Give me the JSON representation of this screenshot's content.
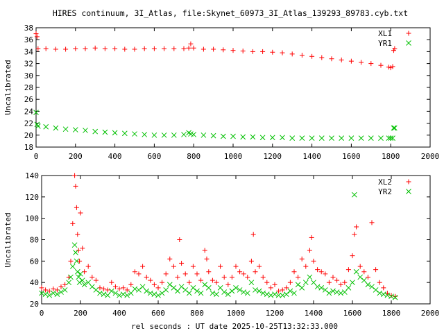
{
  "title": "HIRES continuum, 3I_Atlas, file:Skynet_60973_3I_Atlas_139293_89783.cyb.txt",
  "xlabel": "rel seconds : UT date 2025-10-25T13:32:33.000",
  "colors": {
    "red": "#ff0000",
    "green": "#00c000",
    "axes": "#000000"
  },
  "chart_data": [
    {
      "type": "scatter",
      "ylabel": "Uncalibrated",
      "xlim": [
        0,
        2000
      ],
      "ylim": [
        18,
        38
      ],
      "xticks": [
        0,
        200,
        400,
        600,
        800,
        1000,
        1200,
        1400,
        1600,
        1800,
        2000
      ],
      "yticks": [
        18,
        20,
        22,
        24,
        26,
        28,
        30,
        32,
        34,
        36,
        38
      ],
      "legend_position": "top-right",
      "series": [
        {
          "name": "XL1",
          "marker": "plus",
          "color": "#ff0000",
          "x": [
            0,
            5,
            10,
            50,
            100,
            150,
            200,
            250,
            300,
            350,
            400,
            450,
            500,
            550,
            600,
            650,
            700,
            750,
            775,
            785,
            800,
            850,
            900,
            950,
            1000,
            1050,
            1100,
            1150,
            1200,
            1250,
            1300,
            1350,
            1400,
            1450,
            1500,
            1550,
            1600,
            1650,
            1700,
            1750,
            1790,
            1800,
            1810,
            1815,
            1820
          ],
          "y": [
            37.0,
            36.5,
            34.5,
            34.5,
            34.4,
            34.4,
            34.5,
            34.5,
            34.6,
            34.5,
            34.5,
            34.4,
            34.4,
            34.5,
            34.5,
            34.5,
            34.5,
            34.5,
            34.6,
            35.3,
            34.6,
            34.4,
            34.4,
            34.3,
            34.2,
            34.1,
            34.0,
            34.0,
            33.9,
            33.8,
            33.6,
            33.4,
            33.2,
            33.0,
            32.8,
            32.6,
            32.4,
            32.2,
            32.0,
            31.7,
            31.4,
            31.3,
            31.5,
            34.2,
            34.5
          ]
        },
        {
          "name": "YR1",
          "marker": "cross",
          "color": "#00c000",
          "x": [
            0,
            5,
            10,
            50,
            100,
            150,
            200,
            250,
            300,
            350,
            400,
            450,
            500,
            550,
            600,
            650,
            700,
            750,
            775,
            785,
            800,
            850,
            900,
            950,
            1000,
            1050,
            1100,
            1150,
            1200,
            1250,
            1300,
            1350,
            1400,
            1450,
            1500,
            1550,
            1600,
            1650,
            1700,
            1750,
            1790,
            1800,
            1810,
            1815,
            1820
          ],
          "y": [
            23.8,
            21.8,
            21.5,
            21.4,
            21.2,
            21.0,
            20.9,
            20.8,
            20.6,
            20.5,
            20.4,
            20.3,
            20.2,
            20.1,
            20.0,
            20.0,
            20.0,
            20.1,
            20.4,
            20.2,
            20.1,
            20.0,
            19.9,
            19.8,
            19.8,
            19.7,
            19.7,
            19.6,
            19.6,
            19.6,
            19.5,
            19.5,
            19.5,
            19.5,
            19.5,
            19.5,
            19.5,
            19.5,
            19.5,
            19.5,
            19.5,
            19.5,
            19.5,
            21.2,
            21.2
          ]
        }
      ]
    },
    {
      "type": "scatter",
      "ylabel": "Uncalibrated",
      "xlim": [
        0,
        2000
      ],
      "ylim": [
        20,
        140
      ],
      "xticks": [
        0,
        200,
        400,
        600,
        800,
        1000,
        1200,
        1400,
        1600,
        1800,
        2000
      ],
      "yticks": [
        20,
        40,
        60,
        80,
        100,
        120,
        140
      ],
      "legend_position": "top-right",
      "series": [
        {
          "name": "XL2",
          "marker": "plus",
          "color": "#ff0000",
          "x": [
            0,
            20,
            40,
            60,
            80,
            100,
            120,
            140,
            150,
            160,
            170,
            175,
            180,
            185,
            190,
            195,
            200,
            210,
            220,
            240,
            260,
            280,
            300,
            320,
            340,
            360,
            380,
            400,
            420,
            440,
            460,
            480,
            500,
            520,
            540,
            560,
            580,
            600,
            620,
            640,
            660,
            680,
            700,
            710,
            720,
            740,
            760,
            780,
            800,
            820,
            840,
            850,
            860,
            880,
            900,
            920,
            940,
            960,
            980,
            1000,
            1020,
            1040,
            1060,
            1080,
            1090,
            1100,
            1120,
            1140,
            1160,
            1180,
            1200,
            1220,
            1240,
            1260,
            1280,
            1300,
            1320,
            1340,
            1360,
            1380,
            1390,
            1400,
            1420,
            1440,
            1460,
            1480,
            1500,
            1520,
            1540,
            1560,
            1580,
            1600,
            1610,
            1620,
            1640,
            1660,
            1680,
            1700,
            1720,
            1740,
            1760,
            1780,
            1800,
            1820
          ],
          "y": [
            35,
            33,
            32,
            34,
            33,
            36,
            38,
            45,
            60,
            95,
            140,
            130,
            110,
            85,
            70,
            60,
            105,
            72,
            50,
            55,
            45,
            42,
            35,
            34,
            33,
            40,
            36,
            34,
            35,
            33,
            38,
            50,
            48,
            55,
            45,
            42,
            38,
            35,
            40,
            48,
            62,
            55,
            45,
            80,
            58,
            48,
            40,
            55,
            48,
            42,
            70,
            62,
            50,
            42,
            40,
            55,
            45,
            38,
            45,
            55,
            50,
            48,
            45,
            60,
            85,
            50,
            55,
            45,
            40,
            35,
            38,
            32,
            33,
            35,
            40,
            50,
            45,
            62,
            55,
            70,
            82,
            60,
            52,
            50,
            48,
            40,
            45,
            42,
            38,
            40,
            52,
            65,
            85,
            92,
            55,
            50,
            45,
            96,
            52,
            40,
            35,
            30,
            28,
            27
          ]
        },
        {
          "name": "YR2",
          "marker": "cross",
          "color": "#00c000",
          "x": [
            0,
            20,
            40,
            60,
            80,
            100,
            120,
            140,
            150,
            160,
            170,
            175,
            180,
            185,
            190,
            195,
            200,
            210,
            220,
            240,
            260,
            280,
            300,
            320,
            340,
            360,
            380,
            400,
            420,
            440,
            460,
            480,
            500,
            520,
            540,
            560,
            580,
            600,
            620,
            640,
            660,
            680,
            700,
            720,
            740,
            760,
            780,
            800,
            820,
            840,
            860,
            880,
            900,
            920,
            940,
            960,
            980,
            1000,
            1020,
            1040,
            1060,
            1080,
            1100,
            1120,
            1140,
            1160,
            1180,
            1200,
            1220,
            1240,
            1260,
            1280,
            1300,
            1320,
            1340,
            1360,
            1380,
            1400,
            1420,
            1440,
            1460,
            1480,
            1500,
            1520,
            1540,
            1560,
            1580,
            1600,
            1610,
            1620,
            1640,
            1660,
            1680,
            1700,
            1720,
            1740,
            1760,
            1780,
            1800,
            1820
          ],
          "y": [
            30,
            29,
            28,
            30,
            29,
            31,
            33,
            40,
            45,
            55,
            75,
            68,
            60,
            50,
            45,
            40,
            48,
            42,
            38,
            40,
            36,
            33,
            30,
            29,
            28,
            32,
            30,
            28,
            29,
            28,
            30,
            34,
            33,
            36,
            32,
            30,
            29,
            28,
            30,
            33,
            38,
            35,
            32,
            36,
            33,
            30,
            35,
            32,
            30,
            38,
            35,
            30,
            29,
            35,
            31,
            29,
            32,
            35,
            33,
            31,
            30,
            40,
            33,
            32,
            30,
            29,
            28,
            29,
            28,
            28,
            29,
            32,
            30,
            38,
            35,
            40,
            45,
            40,
            36,
            35,
            33,
            30,
            32,
            31,
            30,
            31,
            35,
            40,
            122,
            50,
            45,
            42,
            38,
            36,
            33,
            30,
            29,
            28,
            27,
            26
          ]
        }
      ]
    }
  ]
}
